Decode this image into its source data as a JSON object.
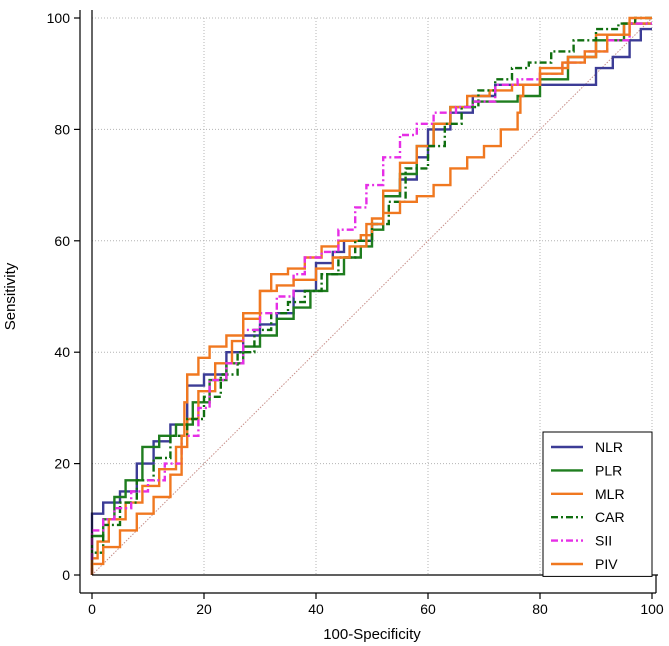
{
  "chart_data": {
    "type": "line",
    "title": "",
    "xlabel": "100-Specificity",
    "ylabel": "Sensitivity",
    "xlim": [
      0,
      100
    ],
    "ylim": [
      0,
      100
    ],
    "xticks": [
      0,
      20,
      40,
      60,
      80,
      100
    ],
    "yticks": [
      0,
      20,
      40,
      60,
      80,
      100
    ],
    "grid": true,
    "legend_position": "bottom-right",
    "reference_line": {
      "name": "chance",
      "color": "#c8908a",
      "points": [
        [
          0,
          0
        ],
        [
          100,
          100
        ]
      ]
    },
    "series": [
      {
        "name": "NLR",
        "color": "#3c3c96",
        "style": "solid",
        "points": [
          [
            0,
            0
          ],
          [
            0,
            6
          ],
          [
            2,
            11
          ],
          [
            5,
            13
          ],
          [
            8,
            15
          ],
          [
            11,
            20
          ],
          [
            14,
            24
          ],
          [
            17,
            27
          ],
          [
            20,
            34
          ],
          [
            24,
            36
          ],
          [
            27,
            40
          ],
          [
            30,
            43
          ],
          [
            33,
            45
          ],
          [
            36,
            47
          ],
          [
            40,
            51
          ],
          [
            43,
            56
          ],
          [
            45,
            58
          ],
          [
            48,
            60
          ],
          [
            50,
            60
          ],
          [
            52,
            63
          ],
          [
            55,
            68
          ],
          [
            58,
            71
          ],
          [
            60,
            75
          ],
          [
            64,
            80
          ],
          [
            68,
            83
          ],
          [
            72,
            86
          ],
          [
            76,
            88
          ],
          [
            80,
            88
          ],
          [
            86,
            88
          ],
          [
            90,
            88
          ],
          [
            93,
            91
          ],
          [
            96,
            93
          ],
          [
            98,
            96
          ],
          [
            100,
            98
          ]
        ]
      },
      {
        "name": "PLR",
        "color": "#1f7d1f",
        "style": "solid",
        "points": [
          [
            0,
            0
          ],
          [
            0,
            3
          ],
          [
            2,
            7
          ],
          [
            4,
            10
          ],
          [
            6,
            14
          ],
          [
            9,
            17
          ],
          [
            12,
            23
          ],
          [
            15,
            25
          ],
          [
            18,
            27
          ],
          [
            21,
            31
          ],
          [
            24,
            35
          ],
          [
            27,
            38
          ],
          [
            30,
            41
          ],
          [
            33,
            43
          ],
          [
            36,
            46
          ],
          [
            39,
            48
          ],
          [
            42,
            51
          ],
          [
            45,
            54
          ],
          [
            48,
            57
          ],
          [
            50,
            59
          ],
          [
            52,
            62
          ],
          [
            55,
            68
          ],
          [
            58,
            72
          ],
          [
            61,
            77
          ],
          [
            64,
            81
          ],
          [
            68,
            84
          ],
          [
            72,
            85
          ],
          [
            76,
            85
          ],
          [
            80,
            86
          ],
          [
            85,
            89
          ],
          [
            90,
            93
          ],
          [
            95,
            96
          ],
          [
            100,
            99
          ]
        ]
      },
      {
        "name": "MLR",
        "color": "#f07820",
        "style": "solid",
        "points": [
          [
            0,
            0
          ],
          [
            1,
            3
          ],
          [
            3,
            6
          ],
          [
            6,
            10
          ],
          [
            9,
            13
          ],
          [
            12,
            16
          ],
          [
            15,
            19
          ],
          [
            17,
            23
          ],
          [
            19,
            28
          ],
          [
            22,
            33
          ],
          [
            25,
            38
          ],
          [
            27,
            42
          ],
          [
            30,
            46
          ],
          [
            32,
            51
          ],
          [
            35,
            54
          ],
          [
            38,
            55
          ],
          [
            41,
            57
          ],
          [
            44,
            59
          ],
          [
            46,
            60
          ],
          [
            48,
            60
          ],
          [
            50,
            61
          ],
          [
            52,
            64
          ],
          [
            55,
            69
          ],
          [
            58,
            74
          ],
          [
            61,
            77
          ],
          [
            64,
            81
          ],
          [
            67,
            84
          ],
          [
            71,
            86
          ],
          [
            75,
            87
          ],
          [
            80,
            88
          ],
          [
            85,
            91
          ],
          [
            90,
            93
          ],
          [
            95,
            97
          ],
          [
            100,
            99
          ]
        ]
      },
      {
        "name": "CAR",
        "color": "#0f6e0f",
        "style": "dashdot",
        "points": [
          [
            0,
            0
          ],
          [
            2,
            4
          ],
          [
            5,
            9
          ],
          [
            8,
            13
          ],
          [
            11,
            17
          ],
          [
            14,
            21
          ],
          [
            17,
            25
          ],
          [
            20,
            28
          ],
          [
            23,
            32
          ],
          [
            26,
            36
          ],
          [
            29,
            40
          ],
          [
            32,
            44
          ],
          [
            35,
            47
          ],
          [
            38,
            49
          ],
          [
            41,
            51
          ],
          [
            44,
            54
          ],
          [
            47,
            57
          ],
          [
            50,
            60
          ],
          [
            53,
            63
          ],
          [
            56,
            67
          ],
          [
            60,
            73
          ],
          [
            63,
            77
          ],
          [
            66,
            81
          ],
          [
            69,
            84
          ],
          [
            72,
            87
          ],
          [
            75,
            89
          ],
          [
            78,
            91
          ],
          [
            82,
            92
          ],
          [
            86,
            94
          ],
          [
            90,
            96
          ],
          [
            94,
            98
          ],
          [
            97,
            99
          ],
          [
            100,
            100
          ]
        ]
      },
      {
        "name": "SII",
        "color": "#e62ee6",
        "style": "dashdot",
        "points": [
          [
            0,
            0
          ],
          [
            0,
            4
          ],
          [
            2,
            8
          ],
          [
            4,
            10
          ],
          [
            7,
            12
          ],
          [
            10,
            15
          ],
          [
            13,
            17
          ],
          [
            16,
            20
          ],
          [
            19,
            25
          ],
          [
            21,
            30
          ],
          [
            24,
            35
          ],
          [
            27,
            38
          ],
          [
            30,
            44
          ],
          [
            33,
            47
          ],
          [
            36,
            50
          ],
          [
            38,
            54
          ],
          [
            41,
            57
          ],
          [
            44,
            58
          ],
          [
            47,
            62
          ],
          [
            49,
            66
          ],
          [
            52,
            70
          ],
          [
            55,
            75
          ],
          [
            58,
            79
          ],
          [
            61,
            81
          ],
          [
            65,
            83
          ],
          [
            68,
            84
          ],
          [
            72,
            85
          ],
          [
            76,
            88
          ],
          [
            80,
            89
          ],
          [
            84,
            90
          ],
          [
            88,
            92
          ],
          [
            92,
            94
          ],
          [
            96,
            96
          ],
          [
            100,
            99
          ]
        ]
      },
      {
        "name": "PIV",
        "color": "#f07820",
        "style": "solid",
        "points": [
          [
            0,
            0
          ],
          [
            2,
            2
          ],
          [
            5,
            5
          ],
          [
            8,
            8
          ],
          [
            11,
            11
          ],
          [
            14,
            14
          ],
          [
            16,
            18
          ],
          [
            16.5,
            25
          ],
          [
            17,
            31
          ],
          [
            19,
            36
          ],
          [
            21,
            39
          ],
          [
            24,
            41
          ],
          [
            27,
            43
          ],
          [
            30,
            47
          ],
          [
            33,
            51
          ],
          [
            36,
            52
          ],
          [
            40,
            53
          ],
          [
            43,
            55
          ],
          [
            46,
            57
          ],
          [
            49,
            59
          ],
          [
            52,
            63
          ],
          [
            55,
            65
          ],
          [
            58,
            67
          ],
          [
            61,
            68
          ],
          [
            64,
            70
          ],
          [
            67,
            73
          ],
          [
            70,
            75
          ],
          [
            73,
            77
          ],
          [
            76,
            80
          ],
          [
            76.5,
            83
          ],
          [
            77,
            86
          ],
          [
            80,
            88
          ],
          [
            84,
            90
          ],
          [
            88,
            92
          ],
          [
            92,
            94
          ],
          [
            96,
            97
          ],
          [
            100,
            100
          ]
        ]
      }
    ]
  }
}
